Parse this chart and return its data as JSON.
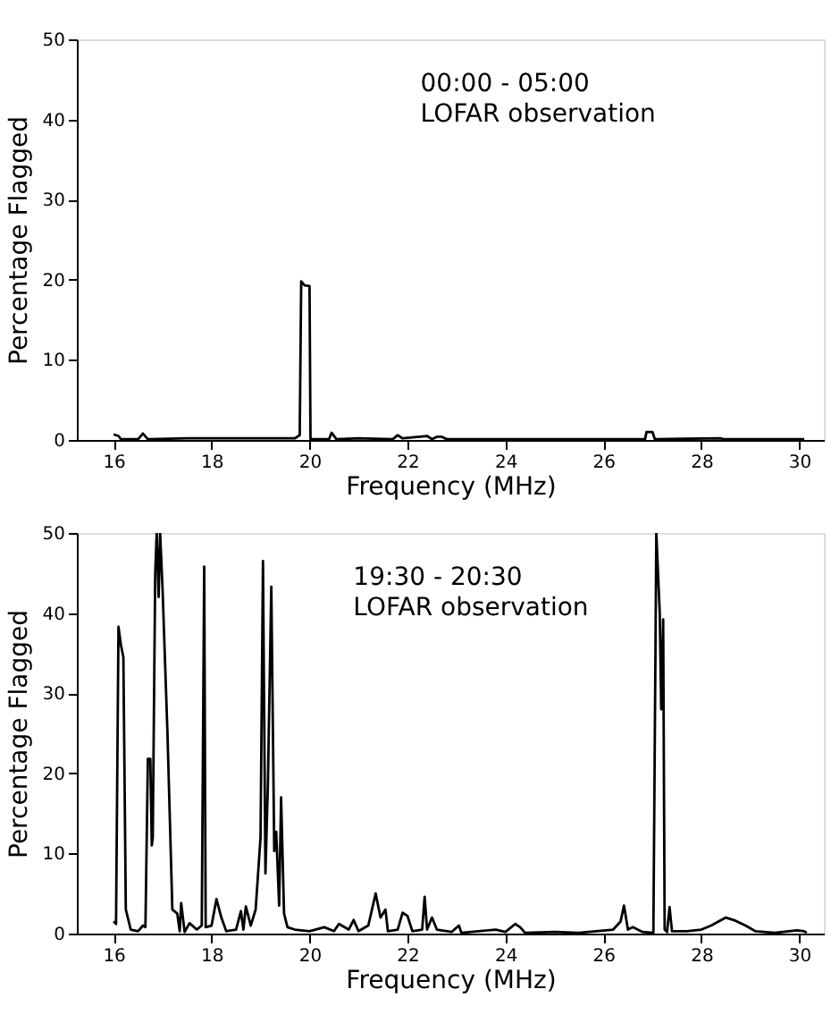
{
  "chart_data": [
    {
      "type": "line",
      "xlabel": "Frequency (MHz)",
      "ylabel": "Percentage Flagged",
      "annotations": [
        "00:00 - 05:00\nLOFAR observation"
      ],
      "xlim": [
        15.25,
        30.5
      ],
      "xticks": [
        16,
        18,
        20,
        22,
        24,
        26,
        28,
        30
      ],
      "ylim": [
        0,
        50
      ],
      "yticks": [
        0,
        10,
        20,
        30,
        40,
        50
      ],
      "grid": false,
      "marker": "none",
      "line_style": "solid",
      "series": [
        {
          "color": "#000000",
          "x": [
            16.0,
            16.1,
            16.15,
            16.5,
            16.6,
            16.7,
            17.5,
            18.4,
            19.7,
            19.8,
            19.83,
            19.9,
            20.0,
            20.02,
            20.4,
            20.45,
            20.55,
            21.0,
            21.7,
            21.8,
            21.9,
            22.4,
            22.5,
            22.6,
            22.7,
            22.8,
            26.85,
            26.88,
            27.0,
            27.05,
            28.4,
            28.45,
            30.1
          ],
          "values": [
            0.7,
            0.5,
            0.1,
            0.1,
            0.8,
            0.1,
            0.2,
            0.2,
            0.2,
            0.6,
            19.8,
            19.3,
            19.2,
            0.1,
            0.1,
            0.9,
            0.1,
            0.2,
            0.1,
            0.6,
            0.2,
            0.5,
            0.1,
            0.4,
            0.4,
            0.1,
            0.1,
            1.0,
            1.0,
            0.1,
            0.2,
            0.1,
            0.1
          ]
        }
      ]
    },
    {
      "type": "line",
      "xlabel": "Frequency (MHz)",
      "ylabel": "Percentage Flagged",
      "annotations": [
        "19:30 - 20:30\nLOFAR observation"
      ],
      "xlim": [
        15.25,
        30.5
      ],
      "xticks": [
        16,
        18,
        20,
        22,
        24,
        26,
        28,
        30
      ],
      "ylim": [
        0,
        50
      ],
      "yticks": [
        0,
        10,
        20,
        30,
        40,
        50
      ],
      "grid": false,
      "marker": "none",
      "line_style": "solid",
      "series": [
        {
          "color": "#000000",
          "x": [
            16.0,
            16.05,
            16.1,
            16.15,
            16.2,
            16.25,
            16.35,
            16.5,
            16.6,
            16.65,
            16.7,
            16.75,
            16.78,
            16.8,
            16.85,
            16.88,
            16.92,
            16.95,
            17.0,
            17.1,
            17.2,
            17.3,
            17.35,
            17.38,
            17.45,
            17.55,
            17.7,
            17.8,
            17.85,
            17.88,
            18.0,
            18.1,
            18.2,
            18.3,
            18.5,
            18.6,
            18.65,
            18.7,
            18.8,
            18.9,
            19.0,
            19.05,
            19.1,
            19.15,
            19.22,
            19.28,
            19.32,
            19.38,
            19.42,
            19.48,
            19.55,
            19.7,
            20.0,
            20.3,
            20.5,
            20.6,
            20.8,
            20.9,
            21.0,
            21.2,
            21.35,
            21.45,
            21.55,
            21.6,
            21.8,
            21.9,
            22.0,
            22.1,
            22.3,
            22.35,
            22.4,
            22.5,
            22.6,
            22.9,
            23.05,
            23.1,
            23.8,
            24.0,
            24.2,
            24.3,
            24.4,
            25.0,
            25.5,
            26.2,
            26.35,
            26.42,
            26.5,
            26.6,
            26.8,
            27.02,
            27.08,
            27.15,
            27.18,
            27.22,
            27.25,
            27.3,
            27.35,
            27.4,
            27.7,
            28.0,
            28.2,
            28.5,
            28.7,
            28.9,
            29.1,
            29.5,
            29.95,
            30.1,
            30.15
          ],
          "values": [
            1.5,
            1.2,
            38.3,
            36,
            34.5,
            3,
            0.5,
            0.3,
            1.0,
            0.8,
            21.8,
            21.8,
            11,
            12,
            45,
            50,
            42,
            50,
            43,
            25,
            3,
            2.5,
            0.3,
            3.8,
            0.2,
            1.3,
            0.5,
            1,
            45.8,
            0.8,
            1.0,
            4.3,
            2,
            0.3,
            0.5,
            2.8,
            0.5,
            3.4,
            1.0,
            3,
            12,
            46.5,
            7.5,
            18.6,
            43.3,
            10.3,
            12.7,
            3.5,
            17,
            2.5,
            0.8,
            0.5,
            0.3,
            0.8,
            0.3,
            1.2,
            0.5,
            1.7,
            0.3,
            1.0,
            5.0,
            2,
            3.0,
            0.3,
            0.5,
            2.6,
            2.2,
            0.3,
            0.5,
            4.6,
            0.5,
            2.0,
            0.5,
            0.2,
            1.0,
            0.1,
            0.5,
            0.2,
            1.2,
            0.8,
            0.1,
            0.2,
            0.1,
            0.5,
            1.5,
            3.5,
            0.5,
            0.8,
            0.2,
            0.1,
            50,
            40,
            28,
            39.2,
            0.5,
            0.2,
            3.3,
            0.3,
            0.3,
            0.5,
            1.0,
            2.0,
            1.6,
            1.0,
            0.3,
            0.1,
            0.4,
            0.3,
            0.1
          ]
        }
      ]
    }
  ]
}
